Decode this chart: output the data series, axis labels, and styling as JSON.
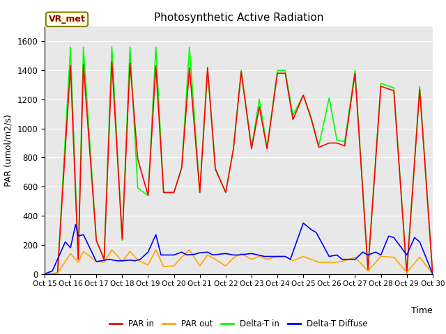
{
  "title": "Photosynthetic Active Radiation",
  "ylabel": "PAR (umol/m2/s)",
  "xlabel": "Time",
  "annotation": "VR_met",
  "ylim": [
    0,
    1700
  ],
  "yticks": [
    0,
    200,
    400,
    600,
    800,
    1000,
    1200,
    1400,
    1600
  ],
  "xtick_labels": [
    "Oct 15",
    "Oct 16",
    "Oct 17",
    "Oct 18",
    "Oct 19",
    "Oct 20",
    "Oct 21",
    "Oct 22",
    "Oct 23",
    "Oct 24",
    "Oct 25",
    "Oct 26",
    "Oct 27",
    "Oct 28",
    "Oct 29",
    "Oct 30"
  ],
  "background_color": "#e8e8e8",
  "par_in_x": [
    0,
    0.5,
    1.0,
    1.3,
    1.5,
    2.0,
    2.3,
    2.6,
    3.0,
    3.3,
    3.6,
    4.0,
    4.3,
    4.6,
    5.0,
    5.3,
    5.6,
    6.0,
    6.3,
    6.6,
    7.0,
    7.3,
    7.6,
    8.0,
    8.3,
    8.6,
    9.0,
    9.3,
    9.6,
    10.0,
    10.3,
    10.6,
    11.0,
    11.3,
    11.6,
    12.0,
    12.5,
    13.0,
    13.5,
    14.0,
    14.5,
    15.0
  ],
  "par_in_y": [
    0,
    5,
    1430,
    100,
    1440,
    230,
    100,
    1460,
    240,
    1450,
    790,
    540,
    1430,
    560,
    560,
    730,
    1420,
    560,
    1420,
    720,
    560,
    860,
    1390,
    860,
    1150,
    860,
    1380,
    1380,
    1060,
    1230,
    1070,
    870,
    900,
    900,
    880,
    1380,
    30,
    1290,
    1260,
    5,
    1270,
    0
  ],
  "par_out_x": [
    0,
    0.5,
    1.0,
    1.3,
    1.5,
    2.0,
    2.3,
    2.6,
    3.0,
    3.3,
    3.6,
    4.0,
    4.3,
    4.6,
    5.0,
    5.3,
    5.6,
    6.0,
    6.3,
    6.6,
    7.0,
    7.3,
    7.6,
    8.0,
    8.3,
    8.6,
    9.0,
    9.3,
    9.6,
    10.0,
    10.3,
    10.6,
    11.0,
    11.3,
    11.6,
    12.0,
    12.5,
    13.0,
    13.5,
    14.0,
    14.5,
    15.0
  ],
  "par_out_y": [
    0,
    5,
    140,
    80,
    155,
    85,
    80,
    165,
    85,
    155,
    95,
    60,
    165,
    50,
    55,
    115,
    165,
    55,
    130,
    100,
    55,
    110,
    140,
    100,
    120,
    100,
    120,
    120,
    90,
    120,
    100,
    80,
    80,
    80,
    90,
    115,
    20,
    120,
    115,
    10,
    115,
    0
  ],
  "delta_t_in_x": [
    0,
    0.5,
    1.0,
    1.3,
    1.5,
    2.0,
    2.3,
    2.6,
    3.0,
    3.3,
    3.6,
    4.0,
    4.3,
    4.6,
    5.0,
    5.3,
    5.6,
    6.0,
    6.3,
    6.6,
    7.0,
    7.3,
    7.6,
    8.0,
    8.3,
    8.6,
    9.0,
    9.3,
    9.6,
    10.0,
    10.3,
    10.6,
    11.0,
    11.3,
    11.6,
    12.0,
    12.5,
    13.0,
    13.5,
    14.0,
    14.5,
    15.0
  ],
  "delta_t_in_y": [
    0,
    5,
    1560,
    100,
    1560,
    230,
    100,
    1560,
    230,
    1560,
    590,
    540,
    1560,
    560,
    560,
    730,
    1560,
    560,
    1400,
    730,
    560,
    860,
    1400,
    870,
    1200,
    870,
    1400,
    1400,
    1090,
    1230,
    1080,
    880,
    1210,
    920,
    910,
    1400,
    30,
    1310,
    1280,
    5,
    1290,
    0
  ],
  "delta_t_diff_x": [
    0,
    0.3,
    0.8,
    1.0,
    1.2,
    1.3,
    1.5,
    2.0,
    2.2,
    2.5,
    2.8,
    3.0,
    3.3,
    3.5,
    3.7,
    4.0,
    4.3,
    4.5,
    5.0,
    5.3,
    5.5,
    5.8,
    6.0,
    6.3,
    6.5,
    7.0,
    7.3,
    7.5,
    8.0,
    8.5,
    9.0,
    9.3,
    9.5,
    10.0,
    10.3,
    10.5,
    11.0,
    11.3,
    11.5,
    12.0,
    12.3,
    12.5,
    12.8,
    13.0,
    13.3,
    13.5,
    14.0,
    14.3,
    14.5,
    15.0
  ],
  "delta_t_diff_y": [
    0,
    20,
    220,
    180,
    340,
    260,
    270,
    85,
    90,
    100,
    90,
    90,
    95,
    90,
    100,
    150,
    270,
    130,
    130,
    150,
    130,
    135,
    145,
    150,
    130,
    140,
    130,
    130,
    140,
    120,
    120,
    120,
    100,
    350,
    305,
    285,
    120,
    130,
    100,
    100,
    150,
    130,
    150,
    130,
    260,
    250,
    130,
    250,
    220,
    0
  ]
}
